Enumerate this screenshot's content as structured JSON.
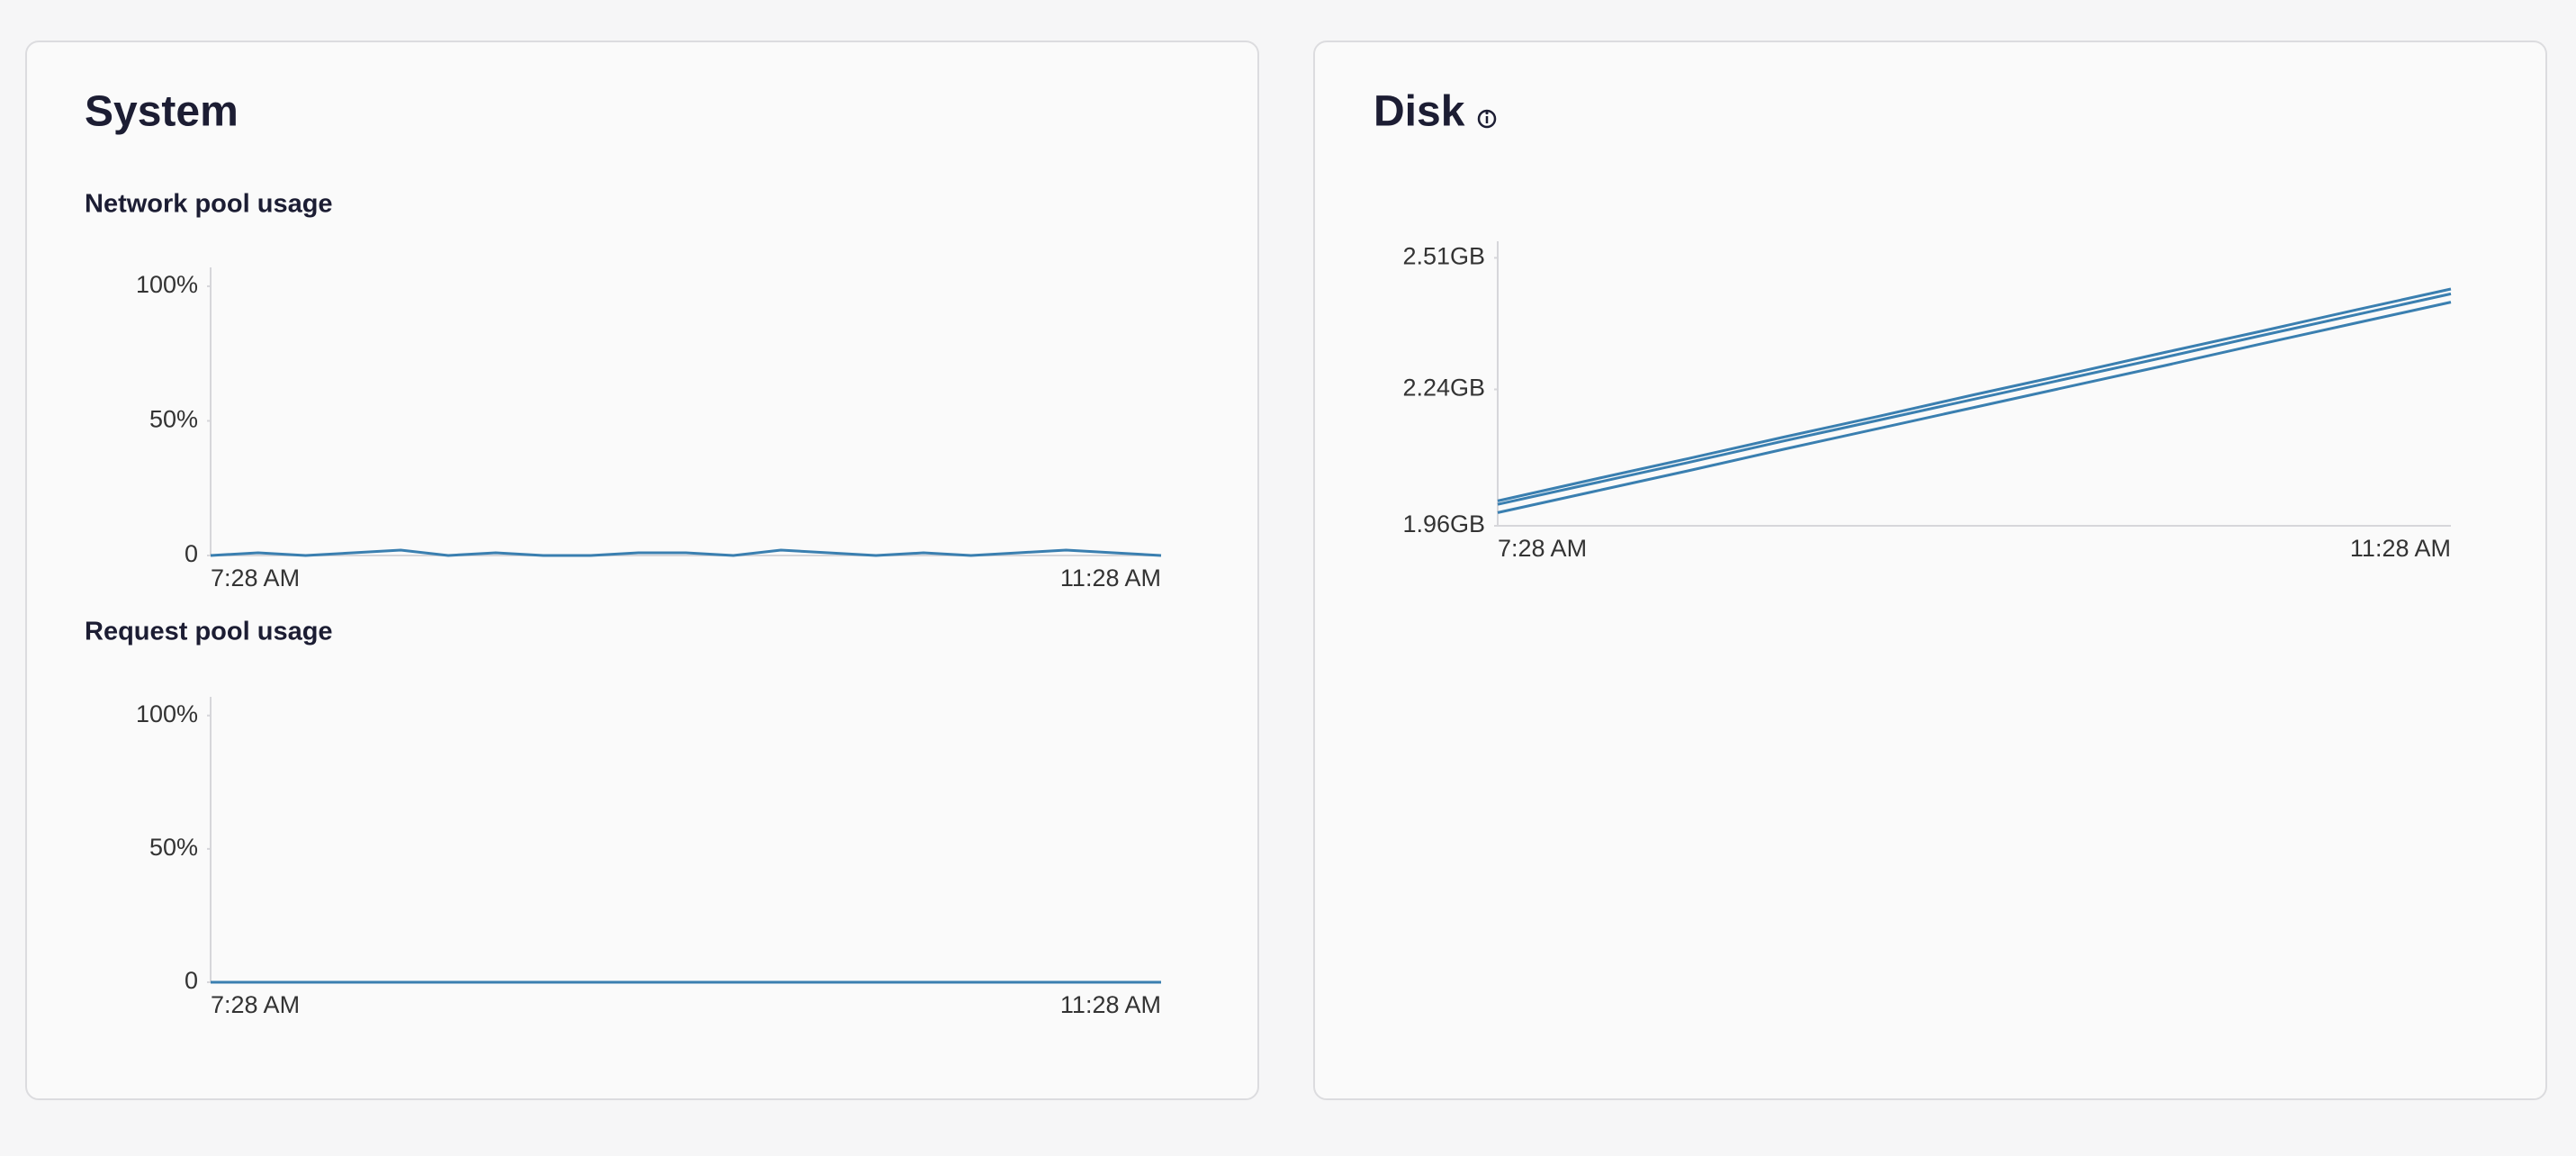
{
  "panels": [
    {
      "title": "System"
    },
    {
      "title": "Disk"
    }
  ],
  "chart_data": [
    {
      "type": "line",
      "title": "Network pool usage",
      "categories": [
        "7:28 AM",
        null,
        null,
        null,
        null,
        null,
        null,
        null,
        null,
        null,
        null,
        null,
        null,
        null,
        null,
        null,
        null,
        null,
        null,
        null,
        "11:28 AM"
      ],
      "series": [
        {
          "color": "#3a7fb0",
          "values": [
            0,
            1,
            0,
            1,
            2,
            0,
            1,
            0,
            0,
            1,
            1,
            0,
            2,
            1,
            0,
            1,
            0,
            1,
            2,
            1,
            0
          ]
        }
      ],
      "ylim": [
        0,
        107
      ],
      "yticks": [
        0,
        {
          "value": 50,
          "label": "50%"
        },
        {
          "value": 100,
          "label": "100%"
        }
      ]
    },
    {
      "type": "line",
      "title": "Request pool usage",
      "categories": [
        "7:28 AM",
        null,
        null,
        null,
        null,
        null,
        null,
        null,
        null,
        null,
        null,
        null,
        null,
        null,
        null,
        null,
        null,
        null,
        null,
        null,
        "11:28 AM"
      ],
      "series": [
        {
          "color": "#3a7fb0",
          "values": [
            0,
            0,
            0,
            0,
            0,
            0,
            0,
            0,
            0,
            0,
            0,
            0,
            0,
            0,
            0,
            0,
            0,
            0,
            0,
            0,
            0
          ]
        }
      ],
      "ylim": [
        0,
        107
      ],
      "yticks": [
        0,
        {
          "value": 50,
          "label": "50%"
        },
        {
          "value": 100,
          "label": "100%"
        }
      ]
    },
    {
      "type": "line",
      "categories": [
        "7:28 AM",
        null,
        null,
        null,
        null,
        null,
        null,
        null,
        null,
        null,
        "11:28 AM"
      ],
      "series": [
        {
          "color": "#3a7fb0",
          "values": [
            2.011,
            2.055,
            2.098,
            2.142,
            2.185,
            2.229,
            2.272,
            2.316,
            2.359,
            2.403,
            2.446
          ]
        },
        {
          "color": "#3a7fb0",
          "values": [
            2.004,
            2.047,
            2.09,
            2.134,
            2.177,
            2.22,
            2.263,
            2.306,
            2.35,
            2.393,
            2.436
          ]
        },
        {
          "color": "#3a7fb0",
          "values": [
            1.987,
            2.03,
            2.073,
            2.117,
            2.16,
            2.203,
            2.246,
            2.289,
            2.333,
            2.376,
            2.419
          ]
        }
      ],
      "ylim": [
        1.96,
        2.544
      ],
      "yticks": [
        {
          "value": 1.96,
          "label": "1.96GB"
        },
        {
          "value": 2.24,
          "label": "2.24GB"
        },
        {
          "value": 2.51,
          "label": "2.51GB"
        }
      ]
    }
  ]
}
